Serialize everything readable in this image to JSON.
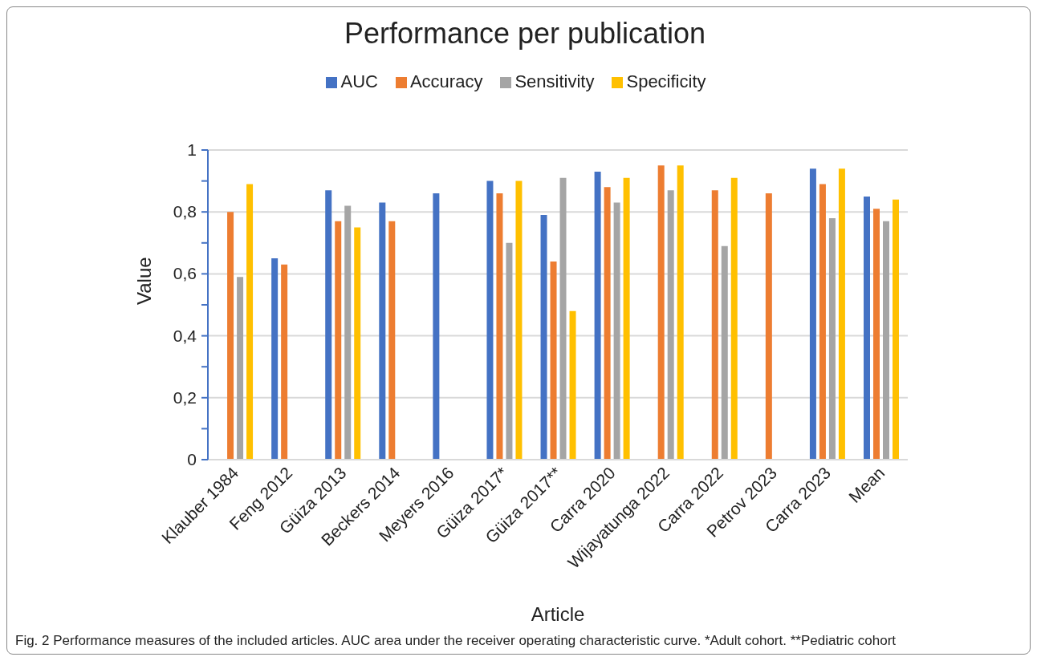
{
  "chart_data": {
    "type": "bar",
    "title": "Performance per publication",
    "xlabel": "Article",
    "ylabel": "Value",
    "categories": [
      "Klauber 1984",
      "Feng 2012",
      "Güiza 2013",
      "Beckers 2014",
      "Meyers 2016",
      "Güiza 2017*",
      "Güiza 2017**",
      "Carra 2020",
      "Wijayatunga 2022",
      "Carra 2022",
      "Petrov 2023",
      "Carra 2023",
      "Mean"
    ],
    "series": [
      {
        "name": "AUC",
        "color": "#4472c4",
        "values": [
          null,
          0.65,
          0.87,
          0.83,
          0.86,
          0.9,
          0.79,
          0.93,
          null,
          null,
          null,
          0.94,
          0.85
        ]
      },
      {
        "name": "Accuracy",
        "color": "#ed7d31",
        "values": [
          0.8,
          0.63,
          0.77,
          0.77,
          null,
          0.86,
          0.64,
          0.88,
          0.95,
          0.87,
          0.86,
          0.89,
          0.81
        ]
      },
      {
        "name": "Sensitivity",
        "color": "#a5a5a5",
        "values": [
          0.59,
          null,
          0.82,
          null,
          null,
          0.7,
          0.91,
          0.83,
          0.87,
          0.69,
          null,
          0.78,
          0.77
        ]
      },
      {
        "name": "Specificity",
        "color": "#ffc000",
        "values": [
          0.89,
          null,
          0.75,
          null,
          null,
          0.9,
          0.48,
          0.91,
          0.95,
          0.91,
          null,
          0.94,
          0.84
        ]
      }
    ],
    "ylim": [
      0,
      1
    ],
    "yticks": [
      {
        "value": 0,
        "label": "0"
      },
      {
        "value": 0.1,
        "label": null
      },
      {
        "value": 0.2,
        "label": "0,2"
      },
      {
        "value": 0.3,
        "label": null
      },
      {
        "value": 0.4,
        "label": "0,4"
      },
      {
        "value": 0.5,
        "label": null
      },
      {
        "value": 0.6,
        "label": "0,6"
      },
      {
        "value": 0.7,
        "label": null
      },
      {
        "value": 0.8,
        "label": "0,8"
      },
      {
        "value": 0.9,
        "label": null
      },
      {
        "value": 1,
        "label": "1"
      }
    ],
    "grid": "y",
    "legend": "top",
    "annotations": [
      "Fig. 2  Performance measures of the included articles. AUC area under the receiver operating characteristic curve. *Adult cohort. **Pediatric cohort"
    ]
  }
}
